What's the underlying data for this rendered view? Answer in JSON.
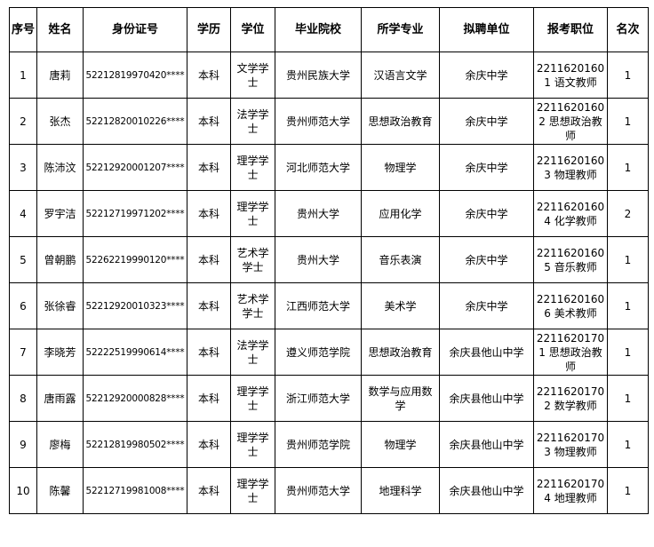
{
  "headers": [
    "序号",
    "姓名",
    "身份证号",
    "学历",
    "学位",
    "毕业院校",
    "所学专业",
    "拟聘单位",
    "报考职位",
    "名次"
  ],
  "rows": [
    [
      "1",
      "唐莉",
      "52212819970420****",
      "本科",
      "文学学士",
      "贵州民族大学",
      "汉语言文学",
      "余庆中学",
      "22116201601 语文教师",
      "1"
    ],
    [
      "2",
      "张杰",
      "52212820010226****",
      "本科",
      "法学学士",
      "贵州师范大学",
      "思想政治教育",
      "余庆中学",
      "22116201602 思想政治教师",
      "1"
    ],
    [
      "3",
      "陈沛汶",
      "52212920001207****",
      "本科",
      "理学学士",
      "河北师范大学",
      "物理学",
      "余庆中学",
      "22116201603 物理教师",
      "1"
    ],
    [
      "4",
      "罗宇洁",
      "52212719971202****",
      "本科",
      "理学学士",
      "贵州大学",
      "应用化学",
      "余庆中学",
      "22116201604 化学教师",
      "2"
    ],
    [
      "5",
      "曾朝鹏",
      "52262219990120****",
      "本科",
      "艺术学学士",
      "贵州大学",
      "音乐表演",
      "余庆中学",
      "22116201605 音乐教师",
      "1"
    ],
    [
      "6",
      "张徐睿",
      "52212920010323****",
      "本科",
      "艺术学学士",
      "江西师范大学",
      "美术学",
      "余庆中学",
      "22116201606 美术教师",
      "1"
    ],
    [
      "7",
      "李晓芳",
      "52222519990614****",
      "本科",
      "法学学士",
      "遵义师范学院",
      "思想政治教育",
      "余庆县他山中学",
      "22116201701 思想政治教师",
      "1"
    ],
    [
      "8",
      "唐雨露",
      "52212920000828****",
      "本科",
      "理学学士",
      "浙江师范大学",
      "数学与应用数学",
      "余庆县他山中学",
      "22116201702 数学教师",
      "1"
    ],
    [
      "9",
      "廖梅",
      "52212819980502****",
      "本科",
      "理学学士",
      "贵州师范学院",
      "物理学",
      "余庆县他山中学",
      "22116201703 物理教师",
      "1"
    ],
    [
      "10",
      "陈馨",
      "52212719981008****",
      "本科",
      "理学学士",
      "贵州师范大学",
      "地理科学",
      "余庆县他山中学",
      "22116201704 地理教师",
      "1"
    ]
  ]
}
